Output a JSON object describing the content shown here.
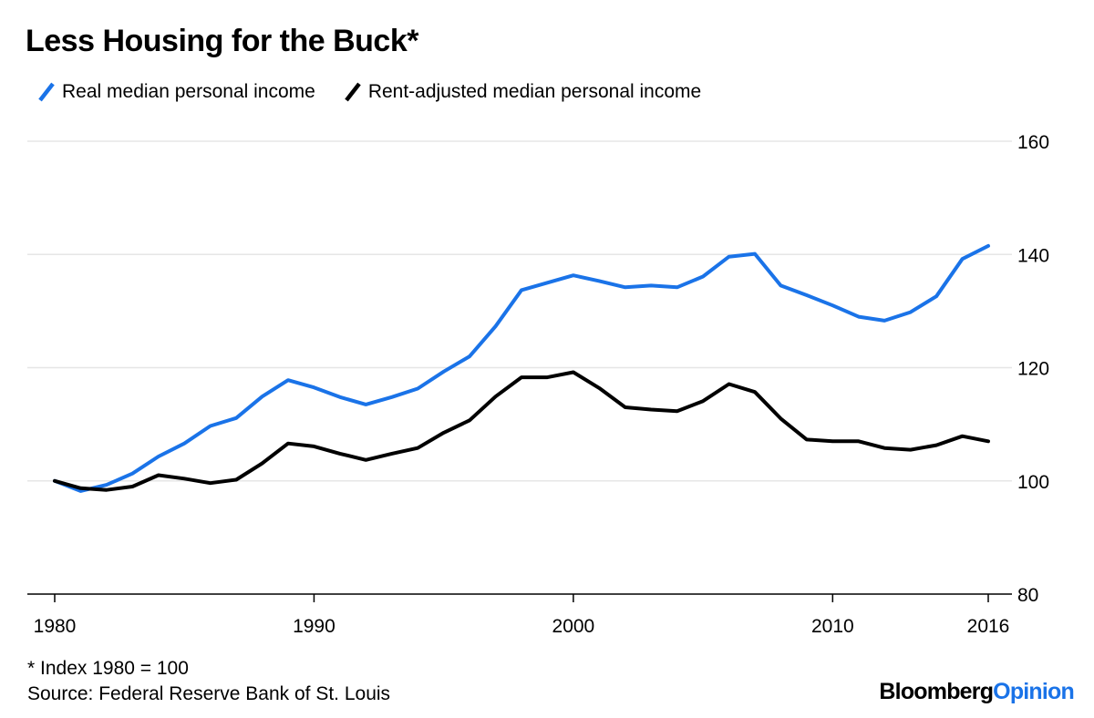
{
  "colors": {
    "blue": "#1a73e8",
    "black": "#000000",
    "grid": "#e6e6e6"
  },
  "logo": {
    "part1": "Bloomberg",
    "part2": "Opinion"
  },
  "chart_data": {
    "type": "line",
    "title": "Less Housing for the Buck*",
    "xlabel": "",
    "ylabel": "",
    "ylim": [
      80,
      160
    ],
    "xlim": [
      1980,
      2016
    ],
    "grid": true,
    "legend_position": "top-left",
    "y_ticks": [
      80,
      100,
      120,
      140,
      160
    ],
    "x_ticks": [
      1980,
      1990,
      2000,
      2010,
      2016
    ],
    "x": [
      1980,
      1981,
      1982,
      1983,
      1984,
      1985,
      1986,
      1987,
      1988,
      1989,
      1990,
      1991,
      1992,
      1993,
      1994,
      1995,
      1996,
      1997,
      1998,
      1999,
      2000,
      2001,
      2002,
      2003,
      2004,
      2005,
      2006,
      2007,
      2008,
      2009,
      2010,
      2011,
      2012,
      2013,
      2014,
      2015,
      2016
    ],
    "series": [
      {
        "name": "Real median personal income",
        "color": "#1a73e8",
        "values": [
          100,
          98.2,
          99.3,
          101.3,
          104.3,
          106.6,
          109.7,
          111.1,
          114.9,
          117.8,
          116.5,
          114.8,
          113.5,
          114.8,
          116.3,
          119.3,
          122,
          127.3,
          133.7,
          135,
          136.3,
          135.3,
          134.2,
          134.5,
          134.2,
          136.1,
          139.6,
          140.1,
          134.5,
          132.8,
          131,
          129,
          128.3,
          129.8,
          132.6,
          139.2,
          141.5
        ]
      },
      {
        "name": "Rent-adjusted median personal income",
        "color": "#000000",
        "values": [
          100,
          98.7,
          98.4,
          99,
          101,
          100.4,
          99.6,
          100.2,
          103.1,
          106.6,
          106.1,
          104.8,
          103.7,
          104.8,
          105.8,
          108.5,
          110.7,
          114.9,
          118.3,
          118.3,
          119.2,
          116.4,
          113,
          112.6,
          112.3,
          114.1,
          117.1,
          115.7,
          111,
          107.3,
          107,
          107,
          105.8,
          105.5,
          106.3,
          107.9,
          107
        ]
      }
    ],
    "annotations": {
      "footnote": "* Index 1980 = 100",
      "source": "Source: Federal Reserve Bank of St. Louis"
    }
  }
}
